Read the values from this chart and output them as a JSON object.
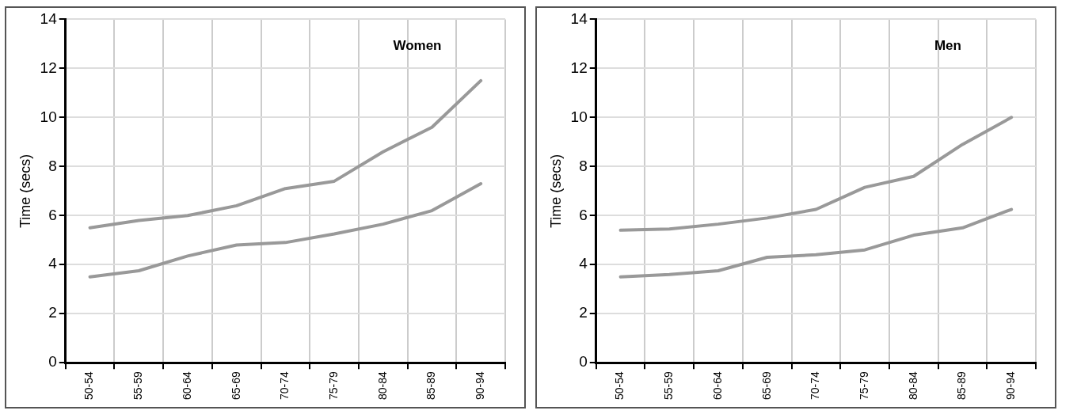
{
  "chart_data": [
    {
      "type": "line",
      "title": "Women",
      "ylabel": "Time (secs)",
      "categories": [
        "50-54",
        "55-59",
        "60-64",
        "65-69",
        "70-74",
        "75-79",
        "80-84",
        "85-89",
        "90-94"
      ],
      "ylim": [
        0,
        14
      ],
      "yticks": [
        0,
        2,
        4,
        6,
        8,
        10,
        12,
        14
      ],
      "grid": true,
      "legend": false,
      "marker": "none",
      "line_style": "solid",
      "series": [
        {
          "color": "#999999",
          "values": [
            5.5,
            5.8,
            6.0,
            6.4,
            7.1,
            7.4,
            8.6,
            9.6,
            11.5
          ]
        },
        {
          "color": "#999999",
          "values": [
            3.5,
            3.75,
            4.35,
            4.8,
            4.9,
            5.25,
            5.65,
            6.2,
            7.3
          ]
        }
      ]
    },
    {
      "type": "line",
      "title": "Men",
      "ylabel": "Time (secs)",
      "categories": [
        "50-54",
        "55-59",
        "60-64",
        "65-69",
        "70-74",
        "75-79",
        "80-84",
        "85-89",
        "90-94"
      ],
      "ylim": [
        0,
        14
      ],
      "yticks": [
        0,
        2,
        4,
        6,
        8,
        10,
        12,
        14
      ],
      "grid": true,
      "legend": false,
      "marker": "none",
      "line_style": "solid",
      "series": [
        {
          "color": "#999999",
          "values": [
            5.4,
            5.45,
            5.65,
            5.9,
            6.25,
            7.15,
            7.6,
            8.9,
            10.0
          ]
        },
        {
          "color": "#999999",
          "values": [
            3.5,
            3.6,
            3.75,
            4.3,
            4.4,
            4.6,
            5.2,
            5.5,
            6.25
          ]
        }
      ]
    }
  ]
}
